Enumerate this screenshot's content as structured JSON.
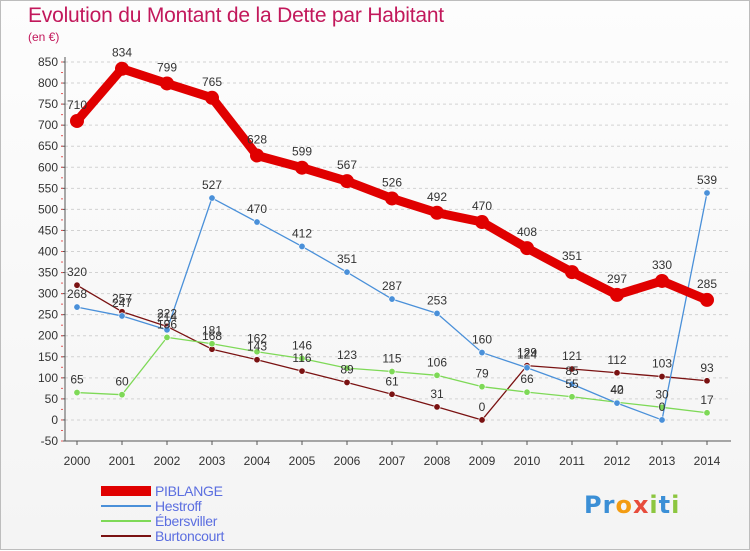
{
  "title": "Evolution du Montant de la Dette par Habitant",
  "unit": "(en €)",
  "brand": {
    "parts": [
      {
        "text": "P",
        "color": "#3b8fd6"
      },
      {
        "text": "r",
        "color": "#3b8fd6"
      },
      {
        "text": "o",
        "color": "#f39c12"
      },
      {
        "text": "x",
        "color": "#e74c3c"
      },
      {
        "text": "i",
        "color": "#8cc63f"
      },
      {
        "text": "t",
        "color": "#3b8fd6"
      },
      {
        "text": "i",
        "color": "#8cc63f"
      }
    ]
  },
  "chart_data": {
    "type": "line",
    "x": [
      "2000",
      "2001",
      "2002",
      "2003",
      "2004",
      "2005",
      "2006",
      "2007",
      "2008",
      "2009",
      "2010",
      "2011",
      "2012",
      "2013",
      "2014"
    ],
    "ylim": [
      -50,
      850
    ],
    "yticks": [
      -50,
      0,
      50,
      100,
      150,
      200,
      250,
      300,
      350,
      400,
      450,
      500,
      550,
      600,
      650,
      700,
      750,
      800,
      850
    ],
    "grid": "horizontal dashed",
    "legend_position": "bottom-left",
    "series": [
      {
        "name": "PIBLANGE",
        "color": "#e00000",
        "values": [
          710,
          834,
          799,
          765,
          628,
          599,
          567,
          526,
          492,
          470,
          408,
          351,
          297,
          330,
          285
        ]
      },
      {
        "name": "Hestroff",
        "color": "#4a90d9",
        "values": [
          268,
          247,
          214,
          527,
          470,
          412,
          351,
          287,
          253,
          160,
          124,
          85,
          40,
          0,
          539
        ]
      },
      {
        "name": "Ébersviller",
        "color": "#7ed957",
        "values": [
          65,
          60,
          196,
          181,
          162,
          146,
          123,
          115,
          106,
          79,
          66,
          55,
          42,
          30,
          17
        ]
      },
      {
        "name": "Burtoncourt",
        "color": "#7a1212",
        "values": [
          320,
          257,
          222,
          168,
          143,
          116,
          89,
          61,
          31,
          0,
          129,
          121,
          112,
          103,
          93
        ]
      }
    ]
  }
}
